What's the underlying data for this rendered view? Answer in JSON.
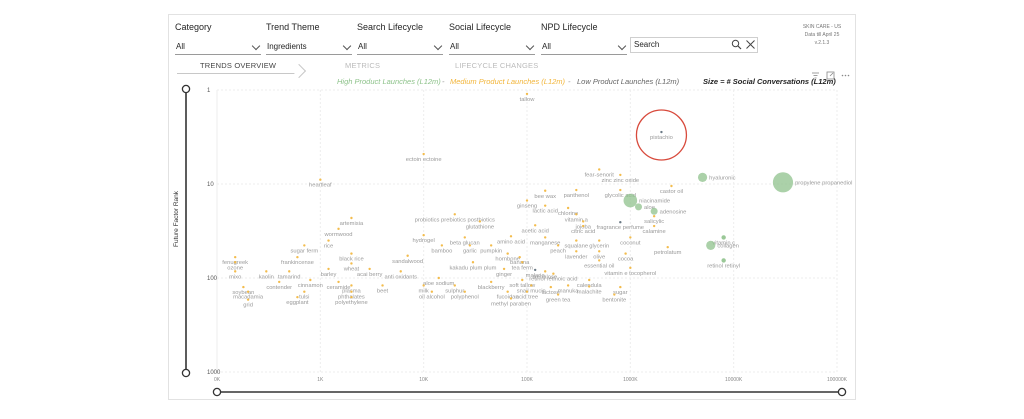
{
  "filters": [
    {
      "label": "Category",
      "value": "All"
    },
    {
      "label": "Trend Theme",
      "value": "Ingredients"
    },
    {
      "label": "Search Lifecycle",
      "value": "All"
    },
    {
      "label": "Social Lifecycle",
      "value": "All"
    },
    {
      "label": "NPD Lifecycle",
      "value": "All"
    }
  ],
  "search": {
    "placeholder": "Search"
  },
  "meta": {
    "line1": "SKIN CARE - US",
    "line2": "Data till April 25",
    "line3": "v.2.1.3"
  },
  "tabs": [
    {
      "label": "TRENDS OVERVIEW",
      "active": true
    },
    {
      "label": "METRICS",
      "active": false
    },
    {
      "label": "LIFECYCLE CHANGES",
      "active": false
    }
  ],
  "legend": {
    "high": "High Product Launches (L12m)",
    "sep": "-",
    "medium": "Medium Product Launches (L12m)",
    "low": "Low Product Launches (L12m)",
    "size": "Size = # Social Conversations (L12m)"
  },
  "colors": {
    "high": "#8fc28c",
    "medium": "#f2b53a",
    "low": "#5a6a78",
    "highlight": "#d84a3c"
  },
  "highlight_label": "pistachio",
  "chart_data": {
    "type": "scatter",
    "ylabel": "Future Factor Rank",
    "yscale": "log",
    "xscale": "log",
    "y_ticks": [
      "1",
      "10",
      "100",
      "1000"
    ],
    "x_ticks": [
      "0K",
      "1K",
      "10K",
      "100K",
      "1000K",
      "10000K",
      "100000K"
    ],
    "points": [
      {
        "label": "tallow",
        "x": 100000,
        "y": 1.1,
        "tier": "medium",
        "size": 1
      },
      {
        "label": "pistachio",
        "x": 2000000,
        "y": 2.8,
        "tier": "low",
        "size": 1
      },
      {
        "label": "ectoin ectoine",
        "x": 10000,
        "y": 4.8,
        "tier": "medium",
        "size": 1
      },
      {
        "label": "heartleaf",
        "x": 1000,
        "y": 9,
        "tier": "medium",
        "size": 1
      },
      {
        "label": "fear-senorit",
        "x": 500000,
        "y": 7,
        "tier": "medium",
        "size": 1
      },
      {
        "label": "zinc zinc oxide",
        "x": 800000,
        "y": 8,
        "tier": "medium",
        "size": 1
      },
      {
        "label": "hyaluronic",
        "x": 5000000,
        "y": 8.5,
        "tier": "high",
        "size": 3
      },
      {
        "label": "castor oil",
        "x": 2500000,
        "y": 10.5,
        "tier": "medium",
        "size": 1
      },
      {
        "label": "propylene propanediol",
        "x": 30000000,
        "y": 9.6,
        "tier": "high",
        "size": 8
      },
      {
        "label": "bee wax",
        "x": 150000,
        "y": 11.8,
        "tier": "medium",
        "size": 1
      },
      {
        "label": "panthenol",
        "x": 300000,
        "y": 11.6,
        "tier": "medium",
        "size": 1
      },
      {
        "label": "glycolic acid",
        "x": 800000,
        "y": 11.6,
        "tier": "medium",
        "size": 1
      },
      {
        "label": "ginseng",
        "x": 100000,
        "y": 15,
        "tier": "medium",
        "size": 1
      },
      {
        "label": "niacinamide",
        "x": 1000000,
        "y": 15,
        "tier": "high",
        "size": 5
      },
      {
        "label": "lactic acid",
        "x": 150000,
        "y": 17,
        "tier": "medium",
        "size": 1
      },
      {
        "label": "aloe",
        "x": 1200000,
        "y": 17.5,
        "tier": "high",
        "size": 2
      },
      {
        "label": "chlorine",
        "x": 250000,
        "y": 18,
        "tier": "medium",
        "size": 1
      },
      {
        "label": "adenosine",
        "x": 1700000,
        "y": 19.5,
        "tier": "high",
        "size": 2
      },
      {
        "label": "vitamin a",
        "x": 300000,
        "y": 21,
        "tier": "medium",
        "size": 1
      },
      {
        "label": "salicylic",
        "x": 1700000,
        "y": 22,
        "tier": "medium",
        "size": 1
      },
      {
        "label": "artemisia",
        "x": 2000,
        "y": 23,
        "tier": "medium",
        "size": 1
      },
      {
        "label": "probiotics prebiotics postbiotics",
        "x": 20000,
        "y": 21,
        "tier": "medium",
        "size": 1
      },
      {
        "label": "glutathione",
        "x": 35000,
        "y": 25,
        "tier": "medium",
        "size": 1
      },
      {
        "label": "jojoba",
        "x": 350000,
        "y": 25,
        "tier": "medium",
        "size": 1
      },
      {
        "label": "fragrance perfume",
        "x": 800000,
        "y": 25.5,
        "tier": "low",
        "size": 1
      },
      {
        "label": "acetic acid",
        "x": 120000,
        "y": 27.5,
        "tier": "medium",
        "size": 1
      },
      {
        "label": "citric acid",
        "x": 350000,
        "y": 28,
        "tier": "medium",
        "size": 1
      },
      {
        "label": "calamine",
        "x": 1700000,
        "y": 28,
        "tier": "medium",
        "size": 1
      },
      {
        "label": "wormwood",
        "x": 1500,
        "y": 30,
        "tier": "medium",
        "size": 1
      },
      {
        "label": "hydrogel",
        "x": 10000,
        "y": 35,
        "tier": "medium",
        "size": 1
      },
      {
        "label": "beta glucan",
        "x": 25000,
        "y": 37,
        "tier": "medium",
        "size": 1
      },
      {
        "label": "amino acid",
        "x": 70000,
        "y": 36,
        "tier": "medium",
        "size": 1
      },
      {
        "label": "manganese",
        "x": 150000,
        "y": 37,
        "tier": "medium",
        "size": 1
      },
      {
        "label": "coconut",
        "x": 1000000,
        "y": 37,
        "tier": "medium",
        "size": 1
      },
      {
        "label": "vitamin c",
        "x": 8000000,
        "y": 37,
        "tier": "high",
        "size": 1
      },
      {
        "label": "rice",
        "x": 1200,
        "y": 40,
        "tier": "medium",
        "size": 1
      },
      {
        "label": "sugar ferm",
        "x": 700,
        "y": 45,
        "tier": "medium",
        "size": 1
      },
      {
        "label": "bamboo",
        "x": 15000,
        "y": 45,
        "tier": "medium",
        "size": 1
      },
      {
        "label": "garlic",
        "x": 28000,
        "y": 45,
        "tier": "medium",
        "size": 1
      },
      {
        "label": "pumpkin",
        "x": 45000,
        "y": 45,
        "tier": "medium",
        "size": 1
      },
      {
        "label": "peach",
        "x": 200000,
        "y": 45,
        "tier": "medium",
        "size": 1
      },
      {
        "label": "squalane",
        "x": 300000,
        "y": 40,
        "tier": "medium",
        "size": 1
      },
      {
        "label": "glycerin",
        "x": 500000,
        "y": 40,
        "tier": "medium",
        "size": 1
      },
      {
        "label": "petrolatum",
        "x": 2300000,
        "y": 47,
        "tier": "medium",
        "size": 1
      },
      {
        "label": "collagen",
        "x": 6000000,
        "y": 45,
        "tier": "high",
        "size": 3
      },
      {
        "label": "fenugreek",
        "x": 150,
        "y": 60,
        "tier": "medium",
        "size": 1
      },
      {
        "label": "ozone",
        "x": 150,
        "y": 68,
        "tier": "medium",
        "size": 1
      },
      {
        "label": "frankincense",
        "x": 600,
        "y": 60,
        "tier": "medium",
        "size": 1
      },
      {
        "label": "black rice",
        "x": 2000,
        "y": 55,
        "tier": "medium",
        "size": 1
      },
      {
        "label": "sandalwood",
        "x": 7000,
        "y": 58,
        "tier": "medium",
        "size": 1
      },
      {
        "label": "hornbone",
        "x": 65000,
        "y": 55,
        "tier": "medium",
        "size": 1
      },
      {
        "label": "banana",
        "x": 85000,
        "y": 60,
        "tier": "medium",
        "size": 1
      },
      {
        "label": "lavender",
        "x": 300000,
        "y": 52,
        "tier": "medium",
        "size": 1
      },
      {
        "label": "olive",
        "x": 500000,
        "y": 52,
        "tier": "medium",
        "size": 1
      },
      {
        "label": "cocoa",
        "x": 900000,
        "y": 55,
        "tier": "medium",
        "size": 1
      },
      {
        "label": "retinol retinyl",
        "x": 8000000,
        "y": 65,
        "tier": "high",
        "size": 1
      },
      {
        "label": "essential oil",
        "x": 500000,
        "y": 65,
        "tier": "medium",
        "size": 1
      },
      {
        "label": "kakadu plum plum",
        "x": 30000,
        "y": 68,
        "tier": "medium",
        "size": 1
      },
      {
        "label": "tea ferm",
        "x": 90000,
        "y": 68,
        "tier": "medium",
        "size": 1
      },
      {
        "label": "vitamin e tocopherol",
        "x": 1000000,
        "y": 78,
        "tier": "medium",
        "size": 1
      },
      {
        "label": "wheat",
        "x": 2000,
        "y": 70,
        "tier": "medium",
        "size": 1
      },
      {
        "label": "kaolin",
        "x": 300,
        "y": 85,
        "tier": "medium",
        "size": 1
      },
      {
        "label": "mixo",
        "x": 150,
        "y": 85,
        "tier": "medium",
        "size": 1
      },
      {
        "label": "tamarind",
        "x": 500,
        "y": 85,
        "tier": "medium",
        "size": 1
      },
      {
        "label": "barley",
        "x": 1200,
        "y": 80,
        "tier": "medium",
        "size": 1
      },
      {
        "label": "acai berry",
        "x": 3000,
        "y": 80,
        "tier": "medium",
        "size": 1
      },
      {
        "label": "anti oxidants",
        "x": 6000,
        "y": 85,
        "tier": "medium",
        "size": 1
      },
      {
        "label": "ginger",
        "x": 60000,
        "y": 80,
        "tier": "medium",
        "size": 1
      },
      {
        "label": "malaria",
        "x": 120000,
        "y": 82,
        "tier": "low",
        "size": 1
      },
      {
        "label": "trehalose",
        "x": 150000,
        "y": 85,
        "tier": "medium",
        "size": 1
      },
      {
        "label": "retinol retinoic acid",
        "x": 180000,
        "y": 90,
        "tier": "medium",
        "size": 1
      },
      {
        "label": "calendula",
        "x": 400000,
        "y": 105,
        "tier": "medium",
        "size": 1
      },
      {
        "label": "cinnamon",
        "x": 800,
        "y": 105,
        "tier": "medium",
        "size": 1
      },
      {
        "label": "contender",
        "x": 400,
        "y": 110,
        "tier": "medium",
        "size": 1
      },
      {
        "label": "ceramide",
        "x": 1500,
        "y": 110,
        "tier": "medium",
        "size": 1
      },
      {
        "label": "aloe sodium",
        "x": 14000,
        "y": 100,
        "tier": "medium",
        "size": 1
      },
      {
        "label": "blackberry",
        "x": 45000,
        "y": 110,
        "tier": "medium",
        "size": 1
      },
      {
        "label": "soft tallow",
        "x": 90000,
        "y": 105,
        "tier": "medium",
        "size": 1
      },
      {
        "label": "lactose",
        "x": 170000,
        "y": 125,
        "tier": "medium",
        "size": 1
      },
      {
        "label": "manuka",
        "x": 250000,
        "y": 120,
        "tier": "medium",
        "size": 1
      },
      {
        "label": "soybean",
        "x": 180,
        "y": 125,
        "tier": "medium",
        "size": 1
      },
      {
        "label": "plasma",
        "x": 2000,
        "y": 120,
        "tier": "medium",
        "size": 1
      },
      {
        "label": "beet",
        "x": 4000,
        "y": 120,
        "tier": "medium",
        "size": 1
      },
      {
        "label": "milk",
        "x": 10000,
        "y": 120,
        "tier": "medium",
        "size": 1
      },
      {
        "label": "sulphur",
        "x": 20000,
        "y": 120,
        "tier": "medium",
        "size": 1
      },
      {
        "label": "snail mucin",
        "x": 110000,
        "y": 120,
        "tier": "medium",
        "size": 1
      },
      {
        "label": "malachite",
        "x": 400000,
        "y": 123,
        "tier": "medium",
        "size": 1
      },
      {
        "label": "sugar",
        "x": 800000,
        "y": 125,
        "tier": "medium",
        "size": 1
      },
      {
        "label": "macadamia",
        "x": 200,
        "y": 140,
        "tier": "medium",
        "size": 1
      },
      {
        "label": "tulsi",
        "x": 700,
        "y": 140,
        "tier": "medium",
        "size": 1
      },
      {
        "label": "phthalates",
        "x": 2000,
        "y": 140,
        "tier": "medium",
        "size": 1
      },
      {
        "label": "oil alcohol",
        "x": 12000,
        "y": 140,
        "tier": "medium",
        "size": 1
      },
      {
        "label": "polyphenol",
        "x": 25000,
        "y": 140,
        "tier": "medium",
        "size": 1
      },
      {
        "label": "fucoidan",
        "x": 65000,
        "y": 140,
        "tier": "medium",
        "size": 1
      },
      {
        "label": "acid tree",
        "x": 100000,
        "y": 140,
        "tier": "medium",
        "size": 1
      },
      {
        "label": "green tea",
        "x": 200000,
        "y": 150,
        "tier": "medium",
        "size": 1
      },
      {
        "label": "bentonite",
        "x": 700000,
        "y": 150,
        "tier": "medium",
        "size": 1
      },
      {
        "label": "eggplant",
        "x": 600,
        "y": 160,
        "tier": "medium",
        "size": 1
      },
      {
        "label": "polyethylene",
        "x": 2000,
        "y": 160,
        "tier": "medium",
        "size": 1
      },
      {
        "label": "methyl paraben",
        "x": 70000,
        "y": 165,
        "tier": "medium",
        "size": 1
      },
      {
        "label": "grid",
        "x": 200,
        "y": 170,
        "tier": "medium",
        "size": 1
      }
    ]
  }
}
